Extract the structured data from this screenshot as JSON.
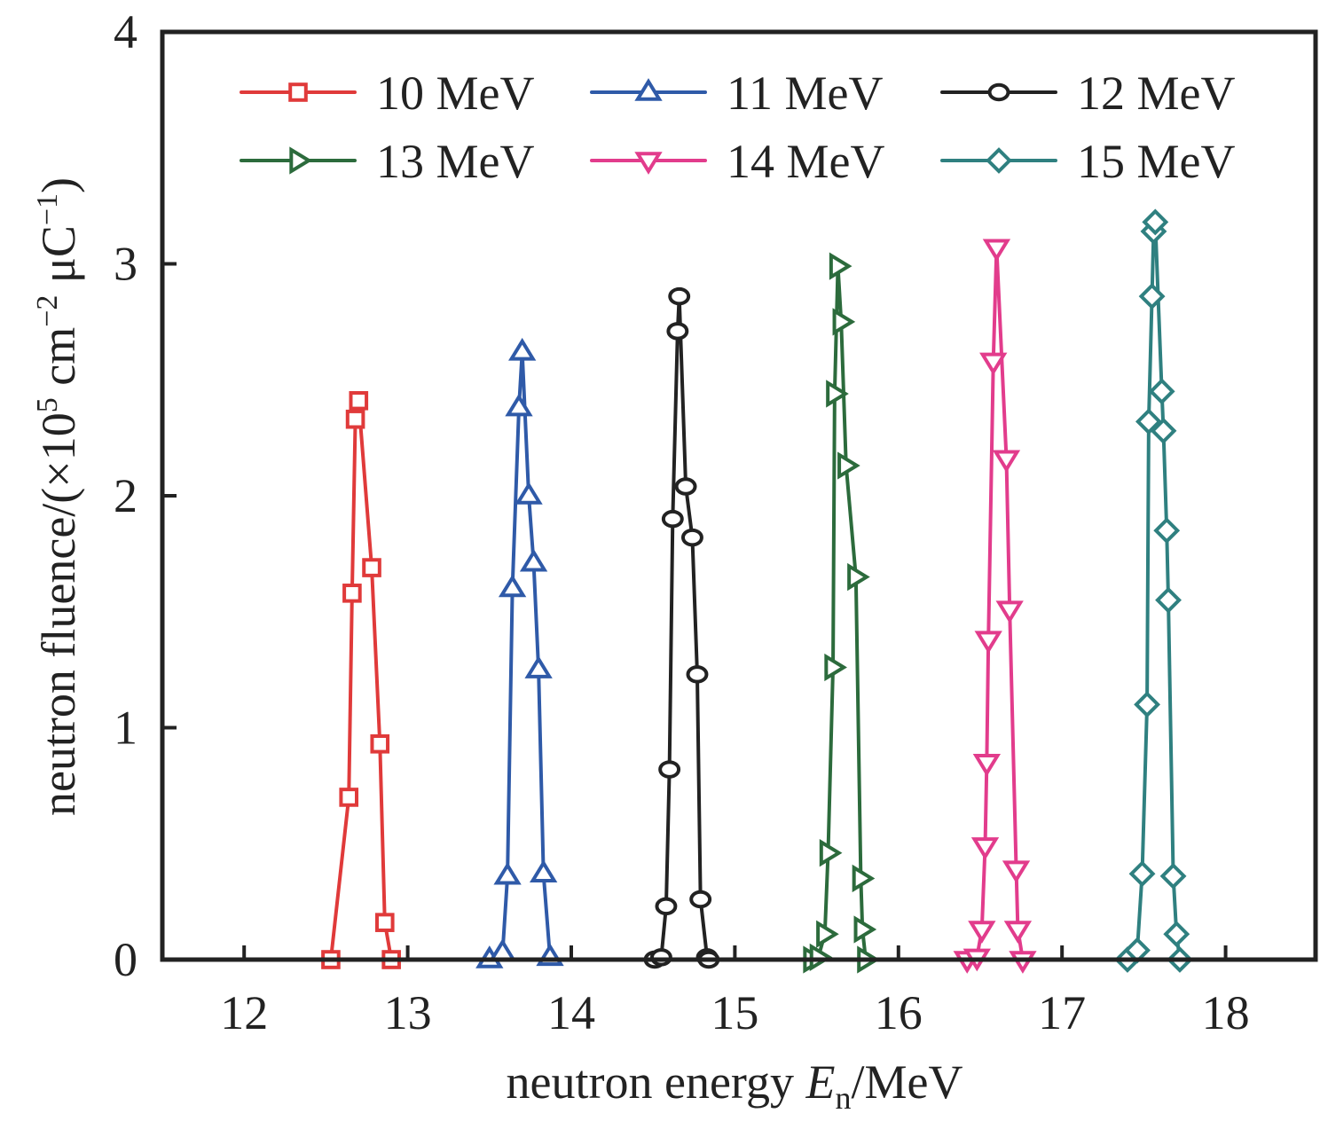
{
  "chart_data": {
    "type": "line",
    "title": "",
    "xlabel": {
      "prefix": "neutron energy ",
      "var": "E",
      "sub": "n",
      "suffix": "/MeV"
    },
    "ylabel": {
      "text": "neutron fluence/(×10",
      "sup1": "5",
      "mid": " cm",
      "sup2": "−2",
      "mid2": " μC",
      "sup3": "−1",
      "end": ")"
    },
    "xlim": [
      11.5,
      18.55
    ],
    "ylim": [
      0,
      4
    ],
    "xticks": [
      12,
      13,
      14,
      15,
      16,
      17,
      18
    ],
    "yticks": [
      0,
      1,
      2,
      3,
      4
    ],
    "grid": false,
    "legend": {
      "placement": "top-right",
      "columns": 3
    },
    "series": [
      {
        "name": "10 MeV",
        "color": "#e03a3a",
        "marker": "square",
        "x": [
          12.53,
          12.64,
          12.66,
          12.68,
          12.7,
          12.78,
          12.83,
          12.86,
          12.9
        ],
        "y": [
          0.0,
          0.7,
          1.58,
          2.33,
          2.41,
          1.69,
          0.93,
          0.16,
          0.0
        ]
      },
      {
        "name": "11 MeV",
        "color": "#2f5aa8",
        "marker": "triangle-up",
        "x": [
          13.5,
          13.58,
          13.61,
          13.64,
          13.68,
          13.7,
          13.74,
          13.77,
          13.8,
          13.83,
          13.87
        ],
        "y": [
          0.0,
          0.03,
          0.36,
          1.6,
          2.38,
          2.62,
          2.0,
          1.71,
          1.25,
          0.37,
          0.01
        ]
      },
      {
        "name": "12 MeV",
        "color": "#222222",
        "marker": "circle",
        "x": [
          14.51,
          14.55,
          14.58,
          14.6,
          14.62,
          14.65,
          14.66,
          14.7,
          14.74,
          14.77,
          14.79,
          14.83,
          14.84
        ],
        "y": [
          0.0,
          0.01,
          0.23,
          0.82,
          1.9,
          2.71,
          2.86,
          2.04,
          1.82,
          1.23,
          0.26,
          0.01,
          0.0
        ]
      },
      {
        "name": "13 MeV",
        "color": "#2c6b3c",
        "marker": "triangle-right",
        "x": [
          15.47,
          15.51,
          15.55,
          15.57,
          15.6,
          15.61,
          15.63,
          15.65,
          15.68,
          15.74,
          15.77,
          15.78,
          15.8
        ],
        "y": [
          0.0,
          0.01,
          0.11,
          0.46,
          1.26,
          2.44,
          2.99,
          2.75,
          2.13,
          1.65,
          0.35,
          0.13,
          0.0
        ]
      },
      {
        "name": "14 MeV",
        "color": "#e23c8c",
        "marker": "triangle-down",
        "x": [
          16.42,
          16.48,
          16.51,
          16.53,
          16.54,
          16.55,
          16.58,
          16.6,
          16.66,
          16.68,
          16.72,
          16.73,
          16.76
        ],
        "y": [
          0.0,
          0.01,
          0.13,
          0.49,
          0.85,
          1.38,
          2.58,
          3.07,
          2.16,
          1.51,
          0.39,
          0.13,
          0.0
        ]
      },
      {
        "name": "15 MeV",
        "color": "#2f8080",
        "marker": "diamond",
        "x": [
          17.4,
          17.46,
          17.49,
          17.52,
          17.53,
          17.55,
          17.56,
          17.57,
          17.61,
          17.62,
          17.64,
          17.65,
          17.68,
          17.7,
          17.72
        ],
        "y": [
          0.0,
          0.04,
          0.37,
          1.1,
          2.32,
          2.86,
          3.14,
          3.18,
          2.45,
          2.28,
          1.85,
          1.55,
          0.36,
          0.11,
          0.0
        ]
      }
    ]
  }
}
